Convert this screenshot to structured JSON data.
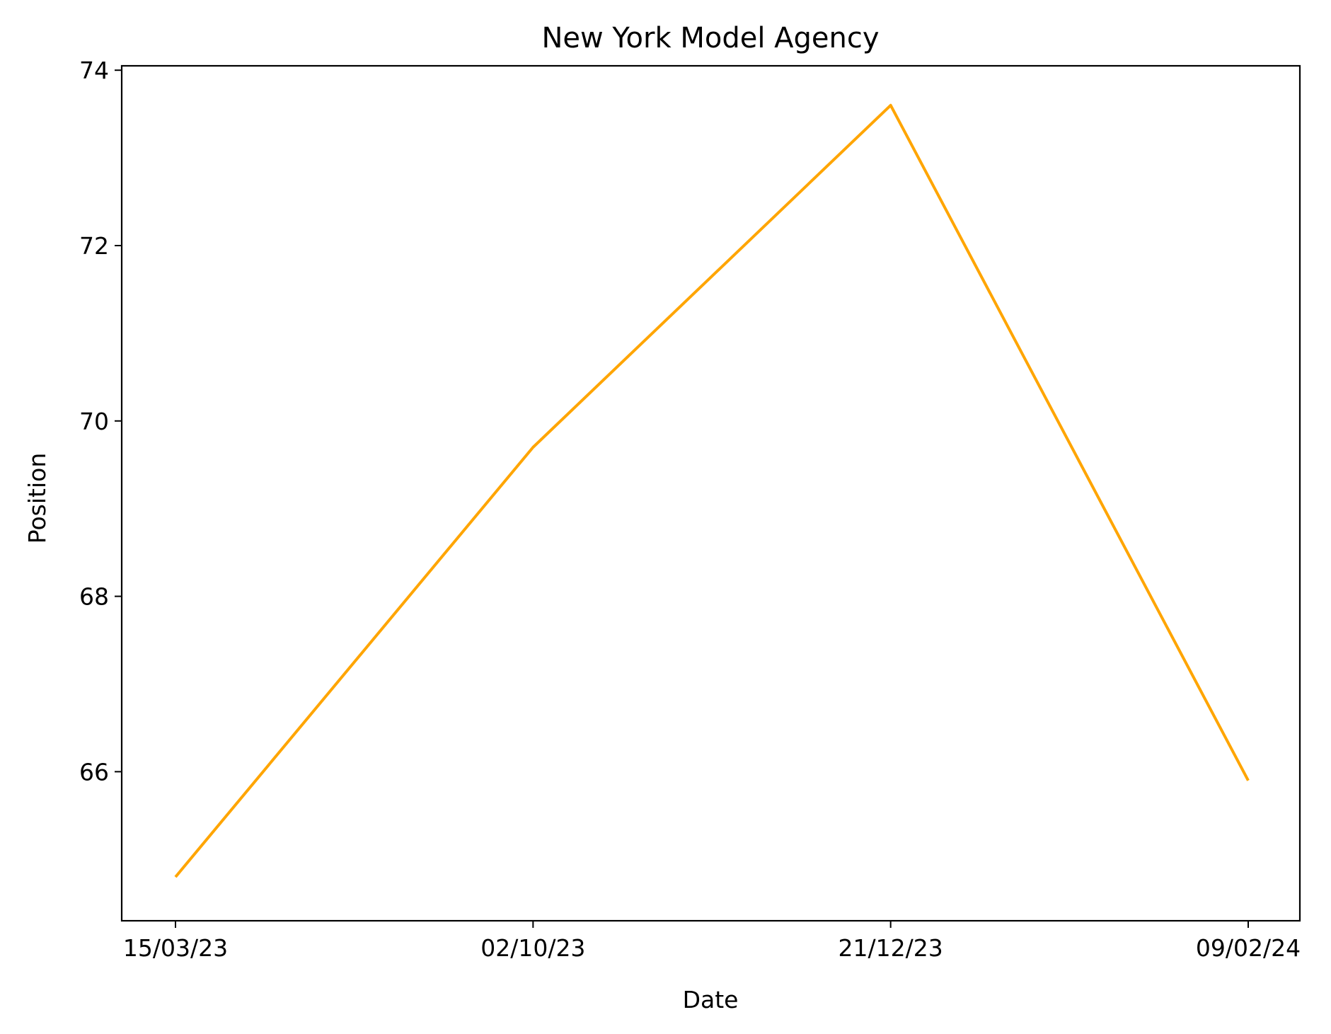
{
  "chart_data": {
    "type": "line",
    "title": "New York Model Agency",
    "xlabel": "Date",
    "ylabel": "Position",
    "x": [
      "15/03/23",
      "02/10/23",
      "21/12/23",
      "09/02/24"
    ],
    "y_ticks": [
      66,
      68,
      70,
      72,
      74
    ],
    "ylim": [
      64.3,
      74.05
    ],
    "series": [
      {
        "values": [
          64.8,
          69.7,
          73.6,
          65.9
        ],
        "color": "#FFA500"
      }
    ],
    "grid": false,
    "legend": "none"
  }
}
